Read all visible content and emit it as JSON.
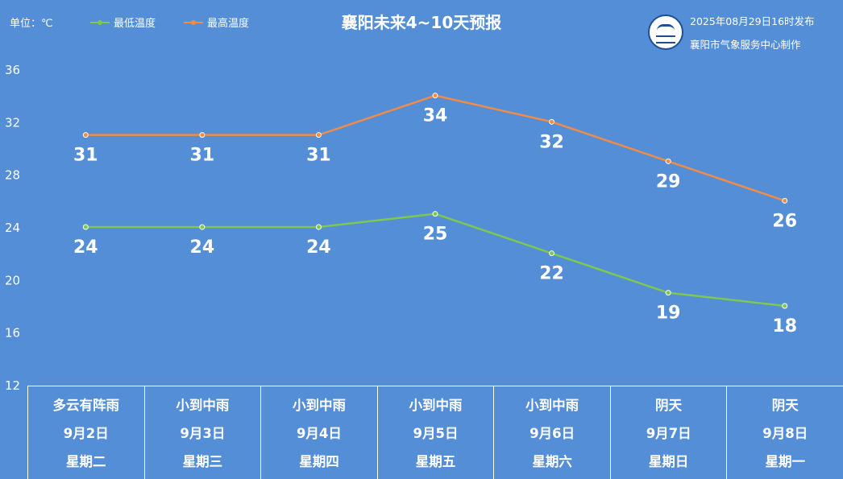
{
  "header": {
    "unit": "单位：℃",
    "title": "襄阳未来4~10天预报",
    "issued": "2025年08月29日16时发布",
    "maker": "襄阳市气象服务中心制作"
  },
  "colors": {
    "low": "#7ec850",
    "high": "#f08c46",
    "background": "#548ed6"
  },
  "chart_data": {
    "type": "line",
    "title": "襄阳未来4~10天预报",
    "categories": [
      "9月2日",
      "9月3日",
      "9月4日",
      "9月5日",
      "9月6日",
      "9月7日",
      "9月8日"
    ],
    "series": [
      {
        "name": "最低温度",
        "values": [
          24,
          24,
          24,
          25,
          22,
          19,
          18
        ]
      },
      {
        "name": "最高温度",
        "values": [
          31,
          31,
          31,
          34,
          32,
          29,
          26
        ]
      }
    ],
    "yticks": [
      12,
      16,
      20,
      24,
      28,
      32,
      36
    ],
    "ylim": [
      12,
      36
    ],
    "legend": "top-left",
    "grid": false
  },
  "days": [
    {
      "weather": "多云有阵雨",
      "date": "9月2日",
      "weekday": "星期二"
    },
    {
      "weather": "小到中雨",
      "date": "9月3日",
      "weekday": "星期三"
    },
    {
      "weather": "小到中雨",
      "date": "9月4日",
      "weekday": "星期四"
    },
    {
      "weather": "小到中雨",
      "date": "9月5日",
      "weekday": "星期五"
    },
    {
      "weather": "小到中雨",
      "date": "9月6日",
      "weekday": "星期六"
    },
    {
      "weather": "阴天",
      "date": "9月7日",
      "weekday": "星期日"
    },
    {
      "weather": "阴天",
      "date": "9月8日",
      "weekday": "星期一"
    }
  ]
}
